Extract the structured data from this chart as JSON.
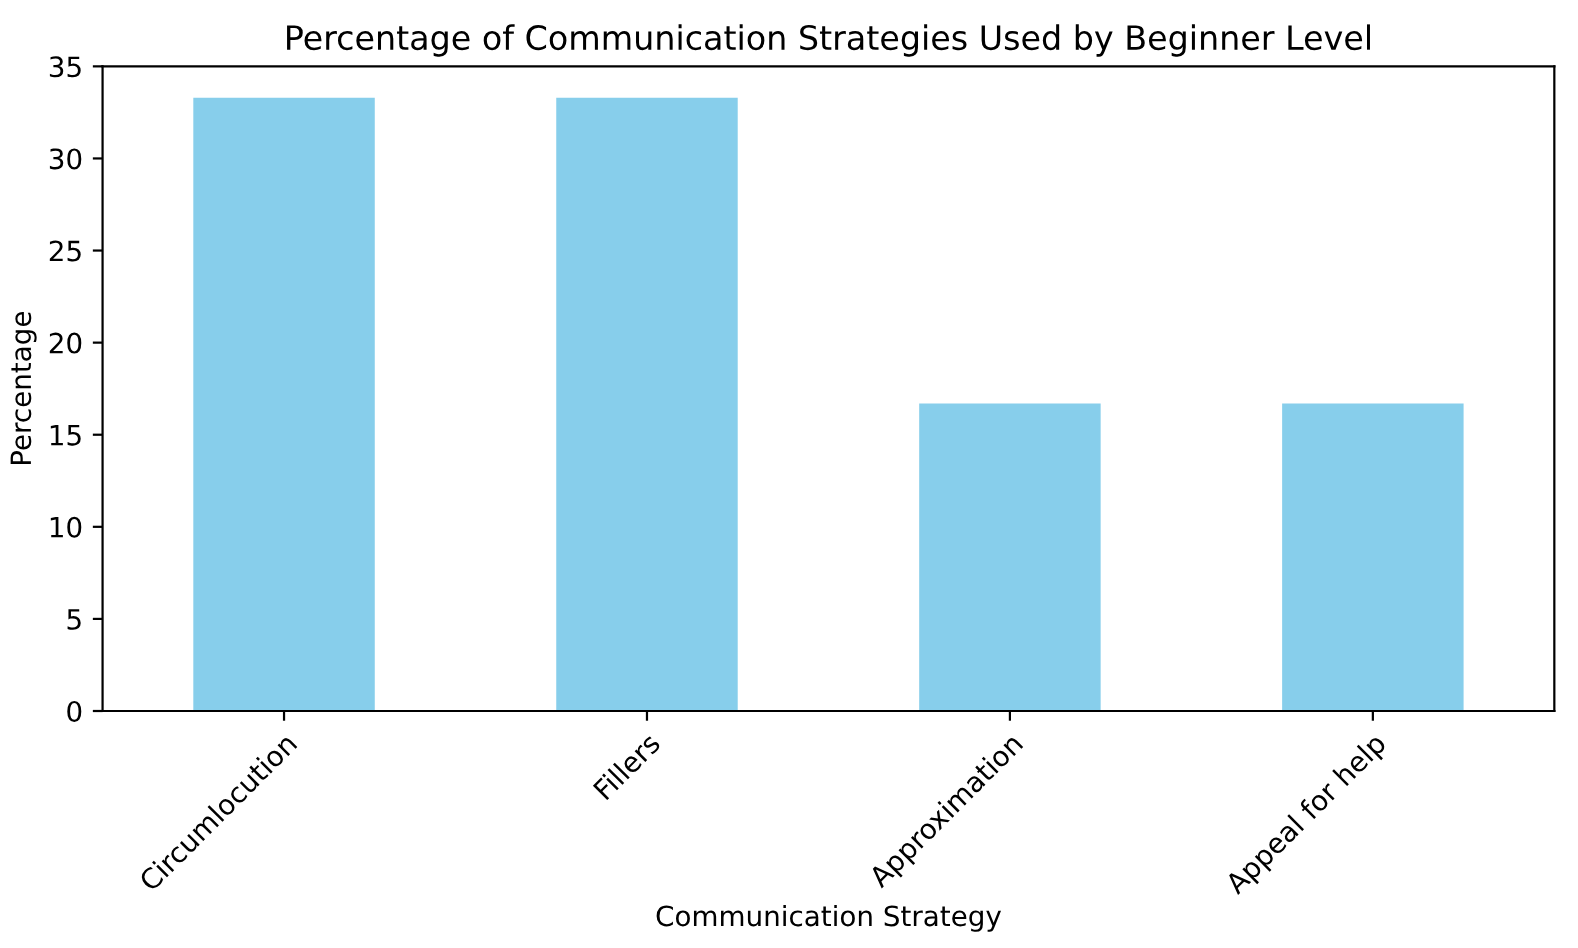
{
  "chart_data": {
    "type": "bar",
    "title": "Percentage of Communication Strategies Used by Beginner Level",
    "xlabel": "Communication Strategy",
    "ylabel": "Percentage",
    "categories": [
      "Circumlocution",
      "Fillers",
      "Approximation",
      "Appeal for help"
    ],
    "values": [
      33.3,
      33.3,
      16.7,
      16.7
    ],
    "color": "#87ceeb",
    "ylim": [
      0,
      35
    ],
    "yticks": [
      0,
      5,
      10,
      15,
      20,
      25,
      30,
      35
    ],
    "grid": false
  }
}
